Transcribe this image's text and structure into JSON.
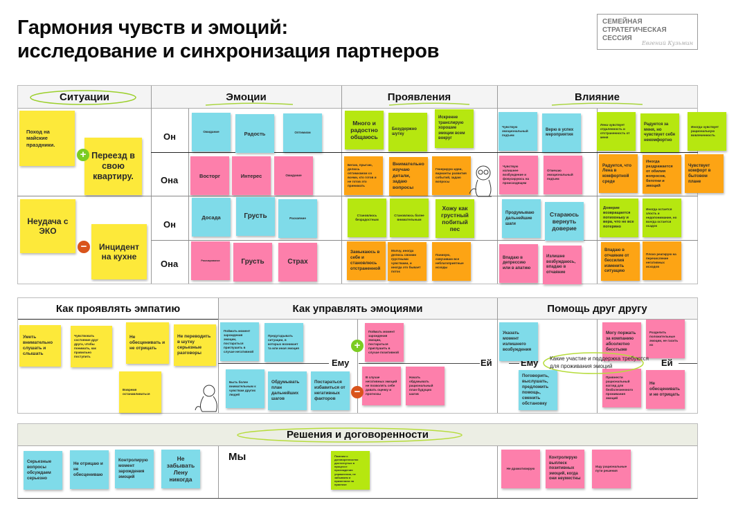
{
  "title": {
    "line1": "Гармония чувств и эмоций:",
    "line2": "исследование и синхронизация партнеров"
  },
  "logo": {
    "line1": "СЕМЕЙНАЯ",
    "line2": "СТРАТЕГИЧЕСКАЯ",
    "line3": "СЕССИЯ",
    "signature": "Евгений Кузьмин"
  },
  "colors": {
    "yellow": "#fde93a",
    "cyan": "#7fdbe9",
    "pink": "#fd7fab",
    "green": "#b6e710",
    "orange": "#fda414",
    "plus": "#7ccc22",
    "minus": "#d9541c"
  },
  "top": {
    "headers": [
      "Ситуации",
      "Эмоции",
      "Проявления",
      "Влияние"
    ],
    "row_labels": [
      "Он",
      "Она",
      "Он",
      "Она"
    ],
    "situations": [
      "Поход на майские праздники.",
      "Переезд в свою квартиру.",
      "Неудача с ЭКО",
      "Инцидент на кухне"
    ],
    "emotions": [
      "Ожидание",
      "Радость",
      "Оптимизм",
      "Восторг",
      "Интерес",
      "Ожидание",
      "Досада",
      "Грусть",
      "Раскаяние",
      "Разочарование",
      "Грусть",
      "Страх"
    ],
    "manifestations": [
      "Много и радостно общаюсь",
      "Безудержно шутку",
      "Искренне транслирую хорошие эмоции всем вокруг",
      "Бегаю, прыгаю, делюсь оптимизмом со всеми, кто готов и не готов это принимать",
      "Внимательно изучаю детали, задаю вопросы",
      "Генерирую идеи, варианты развития событий, задаю вопросы",
      "Становлюсь безрадостным",
      "Становлюсь более внимательным",
      "Хожу как грустный побитый пес",
      "Замыкаюсь в себе и становлюсь отстраненной",
      "Молчу, иногда делюсь своими грустными чувствами, и иногда это бывает поток",
      "Паникую, озвучиваю все неблагоприятные исходы"
    ],
    "influence": [
      "Чувствую эмоциональный подъем",
      "Верю в успех мероприятия",
      "Лена чувствует отдаленность и отстраненность от меня",
      "Радуется за меня, но чувствует себя некомфортно",
      "Иногда чувствует рациональную вовлеченность",
      "Чувствую излишнее возбуждение и фокусируюсь на происходящем",
      "Отмечаю эмоциональный подъем",
      "Радуется, что Лена в комфортной среде",
      "Иногда раздражается от обилия вопросов, беготни и эмоций",
      "Чувствует комфорт в бытовом плане",
      "Продумываю дальнейшие шаги",
      "Стараюсь вернуть доверие",
      "Доверие возвращается потихоньку и вера, что не все потеряно",
      "Иногда остается злость и недопонимание, но всегда остается осадок",
      "Впадаю в депрессию или в апатию",
      "Излишне возбуждаюсь, впадаю в отчаяние",
      "Впадаю в отчаяние от бессилия изменить ситуацию",
      "Плохо реагирую на перечисление негативных исходов"
    ]
  },
  "middle": {
    "headers": [
      "Как проявлять эмпатию",
      "Как управлять эмоциями",
      "Помощь друг другу"
    ],
    "empathy": [
      "Уметь внимательно слушать и слышать",
      "Чувствовать состояние друг друга, чтобы понимать, как правильно поступить",
      "Не обесценивать и не отрицать",
      "Не переводить в шутку серьезные разговоры",
      "Вовремя останавливаться"
    ],
    "manage": {
      "him": "Ему",
      "her": "Ей",
      "notes": [
        "Поймать момент зарождения эмоции, постараться приглушить в случае негативной",
        "Предугадывать ситуации, в которых возникает та или иная эмоция",
        "Быть более внимательным к чувствам других людей",
        "Обдумывать план дальнейших шагов",
        "Постараться избавиться от негативных факторов",
        "Поймать момент зарождения эмоции, постараться приглушить в случае позитивной",
        "В случае негативных эмоций не позволять себе давать оценку и прогнозы",
        "Начать обдумывать рациональный план будущих шагов"
      ]
    },
    "help": {
      "him": "Ему",
      "her": "Ей",
      "prompt": "Какие участие и поддержка требуются для проживания эмоций",
      "notes": [
        "Указать момент излишнего возбуждения",
        "Поговорить, выслушать, предложить помощь, сменить обстановку",
        "Могу поржать за компанию абсолютно бесстыже",
        "Разделить положительные эмоции, не гасить их",
        "Привнести рациональный взгляд для безболезненного проживания эмоций",
        "Не обесценивать и не отрицать"
      ]
    }
  },
  "bottom": {
    "header": "Решения и договоренности",
    "left": [
      "Серьезные вопросы обсуждаем серьезно",
      "Не отрицаю и не обесцениваю",
      "Контролирую момент зарождения эмоций",
      "Не забывать Лену никогда"
    ],
    "we_label": "Мы",
    "we": [
      "Помним о договоренностях достигнутых в процессе прохождения упражнения, не забываем и применяем на практике"
    ],
    "right": [
      "Не драматизирую",
      "Контролирую выплеск позитивных эмоций, когда они неуместны",
      "Ищу рациональные пути решения"
    ]
  }
}
